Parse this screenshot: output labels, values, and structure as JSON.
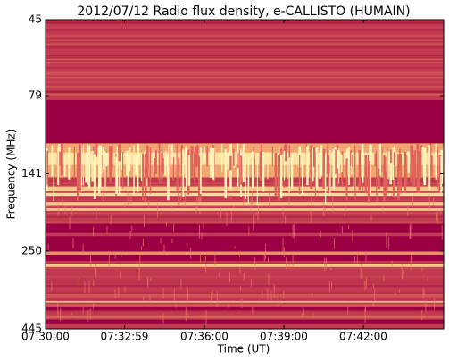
{
  "chart_data": {
    "type": "spectrogram",
    "title": "2012/07/12  Radio flux density, e-CALLISTO (HUMAIN)",
    "xlabel": "Time (UT)",
    "ylabel": "Frequency (MHz)",
    "xlim": [
      "07:30:00",
      "07:45:02"
    ],
    "xticks": [
      "07:30:00",
      "07:32:59",
      "07:36:00",
      "07:39:00",
      "07:42:00"
    ],
    "ylim": [
      45,
      445
    ],
    "yticks": [
      45,
      79,
      141,
      250,
      445
    ],
    "ylog": true,
    "yreversed": true
  }
}
